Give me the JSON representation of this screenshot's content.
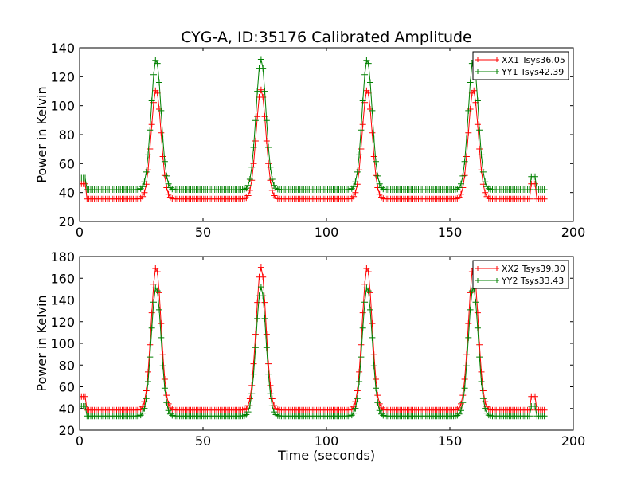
{
  "figure": {
    "title": "CYG-A, ID:35176 Calibrated Amplitude"
  },
  "chart_data": [
    {
      "type": "line",
      "ylabel": "Power in Kelvin",
      "xlabel": "",
      "xlim": [
        0,
        200
      ],
      "ylim": [
        20,
        140
      ],
      "xticks": [
        0,
        50,
        100,
        150,
        200
      ],
      "yticks": [
        20,
        40,
        60,
        80,
        100,
        120,
        140
      ],
      "grid": false,
      "legend": "top-right",
      "marker": "+",
      "peak_centers_sec": [
        31,
        73.5,
        116.5,
        159.5
      ],
      "spike_center_sec": 184,
      "series": [
        {
          "name": "XX1 Tsys36.05",
          "color": "#ff0000",
          "baseline": 35.5,
          "start_level": 46,
          "peak": 111,
          "spike": 46
        },
        {
          "name": "YY1 Tsys42.39",
          "color": "#008000",
          "baseline": 42,
          "start_level": 50,
          "peak": 132,
          "spike": 51
        }
      ]
    },
    {
      "type": "line",
      "ylabel": "Power in Kelvin",
      "xlabel": "Time (seconds)",
      "xlim": [
        0,
        200
      ],
      "ylim": [
        20,
        180
      ],
      "xticks": [
        0,
        50,
        100,
        150,
        200
      ],
      "yticks": [
        20,
        40,
        60,
        80,
        100,
        120,
        140,
        160,
        180
      ],
      "grid": false,
      "legend": "top-right",
      "marker": "+",
      "peak_centers_sec": [
        31,
        73.5,
        116.5,
        159.5
      ],
      "spike_center_sec": 184,
      "series": [
        {
          "name": "XX2 Tsys39.30",
          "color": "#ff0000",
          "baseline": 38.5,
          "start_level": 51,
          "peak": 170,
          "spike": 51
        },
        {
          "name": "YY2 Tsys33.43",
          "color": "#008000",
          "baseline": 33,
          "start_level": 42,
          "peak": 152,
          "spike": 42
        }
      ]
    }
  ]
}
